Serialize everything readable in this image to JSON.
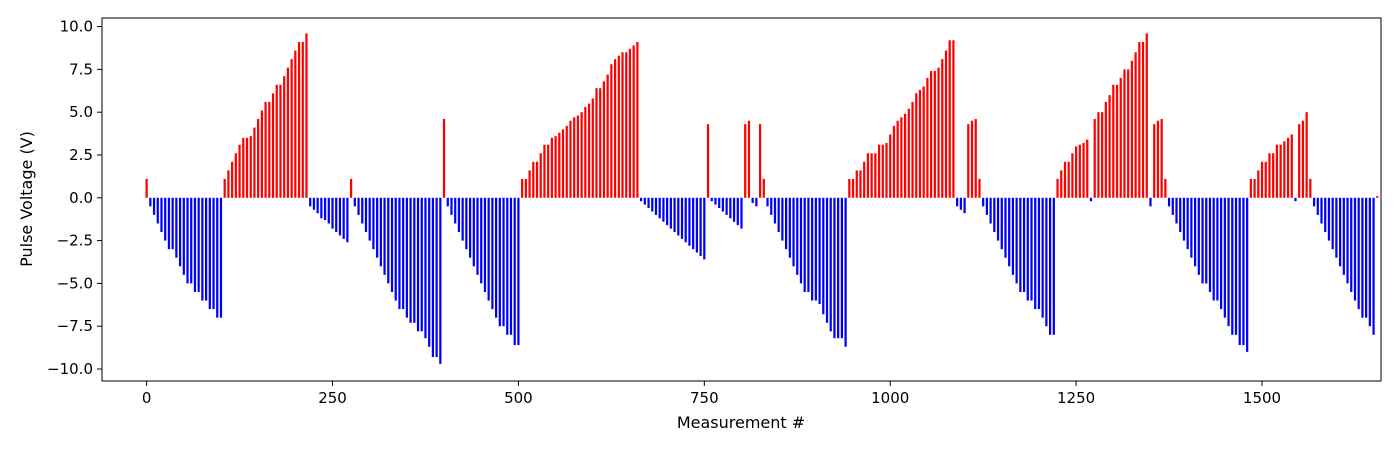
{
  "chart_data": {
    "type": "bar",
    "title": "",
    "xlabel": "Measurement #",
    "ylabel": "Pulse Voltage (V)",
    "xlim": [
      -60,
      1660
    ],
    "ylim": [
      -10.7,
      10.5
    ],
    "xticks": [
      0,
      250,
      500,
      750,
      1000,
      1250,
      1500
    ],
    "yticks": [
      -10.0,
      -7.5,
      -5.0,
      -2.5,
      0.0,
      2.5,
      5.0,
      7.5,
      10.0
    ],
    "grid": false,
    "colors": {
      "positive": "#ff0000",
      "negative": "#0000ff"
    },
    "sample_spacing": 5,
    "points": [
      [
        0,
        1.1
      ],
      [
        5,
        -0.5
      ],
      [
        10,
        -1.0
      ],
      [
        15,
        -1.5
      ],
      [
        20,
        -2.0
      ],
      [
        25,
        -2.5
      ],
      [
        30,
        -3.0
      ],
      [
        35,
        -3.0
      ],
      [
        40,
        -3.5
      ],
      [
        45,
        -4.0
      ],
      [
        50,
        -4.5
      ],
      [
        55,
        -5.0
      ],
      [
        60,
        -5.0
      ],
      [
        65,
        -5.5
      ],
      [
        70,
        -5.5
      ],
      [
        75,
        -6.0
      ],
      [
        80,
        -6.0
      ],
      [
        85,
        -6.5
      ],
      [
        90,
        -6.5
      ],
      [
        95,
        -7.0
      ],
      [
        100,
        -7.0
      ],
      [
        105,
        1.1
      ],
      [
        110,
        1.6
      ],
      [
        115,
        2.1
      ],
      [
        120,
        2.6
      ],
      [
        125,
        3.1
      ],
      [
        130,
        3.5
      ],
      [
        135,
        3.5
      ],
      [
        140,
        3.6
      ],
      [
        145,
        4.1
      ],
      [
        150,
        4.6
      ],
      [
        155,
        5.1
      ],
      [
        160,
        5.6
      ],
      [
        165,
        5.6
      ],
      [
        170,
        6.1
      ],
      [
        175,
        6.6
      ],
      [
        180,
        6.6
      ],
      [
        185,
        7.1
      ],
      [
        190,
        7.6
      ],
      [
        195,
        8.1
      ],
      [
        200,
        8.6
      ],
      [
        205,
        9.1
      ],
      [
        210,
        9.1
      ],
      [
        215,
        9.6
      ],
      [
        220,
        -0.5
      ],
      [
        225,
        -0.7
      ],
      [
        230,
        -0.9
      ],
      [
        235,
        -1.2
      ],
      [
        240,
        -1.3
      ],
      [
        245,
        -1.5
      ],
      [
        250,
        -1.8
      ],
      [
        255,
        -2.0
      ],
      [
        260,
        -2.2
      ],
      [
        265,
        -2.4
      ],
      [
        270,
        -2.6
      ],
      [
        275,
        1.1
      ],
      [
        280,
        -0.5
      ],
      [
        285,
        -1.0
      ],
      [
        290,
        -1.5
      ],
      [
        295,
        -2.0
      ],
      [
        300,
        -2.5
      ],
      [
        305,
        -3.0
      ],
      [
        310,
        -3.5
      ],
      [
        315,
        -4.0
      ],
      [
        320,
        -4.5
      ],
      [
        325,
        -5.0
      ],
      [
        330,
        -5.5
      ],
      [
        335,
        -6.0
      ],
      [
        340,
        -6.5
      ],
      [
        345,
        -6.5
      ],
      [
        350,
        -7.0
      ],
      [
        355,
        -7.3
      ],
      [
        360,
        -7.3
      ],
      [
        365,
        -7.8
      ],
      [
        370,
        -7.8
      ],
      [
        375,
        -8.2
      ],
      [
        380,
        -8.7
      ],
      [
        385,
        -9.3
      ],
      [
        390,
        -9.3
      ],
      [
        395,
        -9.7
      ],
      [
        400,
        4.6
      ],
      [
        405,
        -0.5
      ],
      [
        410,
        -1.0
      ],
      [
        415,
        -1.5
      ],
      [
        420,
        -2.0
      ],
      [
        425,
        -2.5
      ],
      [
        430,
        -3.0
      ],
      [
        435,
        -3.5
      ],
      [
        440,
        -4.0
      ],
      [
        445,
        -4.5
      ],
      [
        450,
        -5.0
      ],
      [
        455,
        -5.5
      ],
      [
        460,
        -6.0
      ],
      [
        465,
        -6.5
      ],
      [
        470,
        -7.0
      ],
      [
        475,
        -7.5
      ],
      [
        480,
        -7.5
      ],
      [
        485,
        -8.0
      ],
      [
        490,
        -8.0
      ],
      [
        495,
        -8.6
      ],
      [
        500,
        -8.6
      ],
      [
        505,
        1.1
      ],
      [
        510,
        1.1
      ],
      [
        515,
        1.6
      ],
      [
        520,
        2.1
      ],
      [
        525,
        2.1
      ],
      [
        530,
        2.6
      ],
      [
        535,
        3.1
      ],
      [
        540,
        3.1
      ],
      [
        545,
        3.5
      ],
      [
        550,
        3.6
      ],
      [
        555,
        3.8
      ],
      [
        560,
        4.0
      ],
      [
        565,
        4.2
      ],
      [
        570,
        4.5
      ],
      [
        575,
        4.7
      ],
      [
        580,
        4.8
      ],
      [
        585,
        5.0
      ],
      [
        590,
        5.3
      ],
      [
        595,
        5.5
      ],
      [
        600,
        5.8
      ],
      [
        605,
        6.4
      ],
      [
        610,
        6.4
      ],
      [
        615,
        6.8
      ],
      [
        620,
        7.2
      ],
      [
        625,
        7.8
      ],
      [
        630,
        8.1
      ],
      [
        635,
        8.3
      ],
      [
        640,
        8.5
      ],
      [
        645,
        8.5
      ],
      [
        650,
        8.7
      ],
      [
        655,
        8.9
      ],
      [
        660,
        9.1
      ],
      [
        665,
        -0.2
      ],
      [
        670,
        -0.4
      ],
      [
        675,
        -0.6
      ],
      [
        680,
        -0.8
      ],
      [
        685,
        -1.0
      ],
      [
        690,
        -1.2
      ],
      [
        695,
        -1.4
      ],
      [
        700,
        -1.6
      ],
      [
        705,
        -1.8
      ],
      [
        710,
        -2.0
      ],
      [
        715,
        -2.2
      ],
      [
        720,
        -2.4
      ],
      [
        725,
        -2.6
      ],
      [
        730,
        -2.8
      ],
      [
        735,
        -3.0
      ],
      [
        740,
        -3.2
      ],
      [
        745,
        -3.4
      ],
      [
        750,
        -3.6
      ],
      [
        755,
        4.3
      ],
      [
        760,
        -0.2
      ],
      [
        765,
        -0.4
      ],
      [
        770,
        -0.6
      ],
      [
        775,
        -0.8
      ],
      [
        780,
        -1.0
      ],
      [
        785,
        -1.2
      ],
      [
        790,
        -1.4
      ],
      [
        795,
        -1.6
      ],
      [
        800,
        -1.8
      ],
      [
        805,
        4.3
      ],
      [
        810,
        4.5
      ],
      [
        815,
        -0.3
      ],
      [
        820,
        -0.5
      ],
      [
        825,
        4.3
      ],
      [
        830,
        1.1
      ],
      [
        835,
        -0.5
      ],
      [
        840,
        -1.0
      ],
      [
        845,
        -1.5
      ],
      [
        850,
        -2.0
      ],
      [
        855,
        -2.5
      ],
      [
        860,
        -3.0
      ],
      [
        865,
        -3.5
      ],
      [
        870,
        -4.0
      ],
      [
        875,
        -4.5
      ],
      [
        880,
        -5.0
      ],
      [
        885,
        -5.5
      ],
      [
        890,
        -5.5
      ],
      [
        895,
        -6.0
      ],
      [
        900,
        -6.0
      ],
      [
        905,
        -6.2
      ],
      [
        910,
        -6.8
      ],
      [
        915,
        -7.3
      ],
      [
        920,
        -7.8
      ],
      [
        925,
        -8.2
      ],
      [
        930,
        -8.2
      ],
      [
        935,
        -8.2
      ],
      [
        940,
        -8.7
      ],
      [
        945,
        1.1
      ],
      [
        950,
        1.1
      ],
      [
        955,
        1.6
      ],
      [
        960,
        1.6
      ],
      [
        965,
        2.1
      ],
      [
        970,
        2.6
      ],
      [
        975,
        2.6
      ],
      [
        980,
        2.6
      ],
      [
        985,
        3.1
      ],
      [
        990,
        3.1
      ],
      [
        995,
        3.2
      ],
      [
        1000,
        3.7
      ],
      [
        1005,
        4.2
      ],
      [
        1010,
        4.5
      ],
      [
        1015,
        4.7
      ],
      [
        1020,
        4.9
      ],
      [
        1025,
        5.2
      ],
      [
        1030,
        5.6
      ],
      [
        1035,
        6.1
      ],
      [
        1040,
        6.3
      ],
      [
        1045,
        6.5
      ],
      [
        1050,
        7.0
      ],
      [
        1055,
        7.4
      ],
      [
        1060,
        7.4
      ],
      [
        1065,
        7.6
      ],
      [
        1070,
        8.1
      ],
      [
        1075,
        8.6
      ],
      [
        1080,
        9.2
      ],
      [
        1085,
        9.2
      ],
      [
        1090,
        -0.5
      ],
      [
        1095,
        -0.7
      ],
      [
        1100,
        -0.9
      ],
      [
        1105,
        4.3
      ],
      [
        1110,
        4.5
      ],
      [
        1115,
        4.6
      ],
      [
        1120,
        1.1
      ],
      [
        1125,
        -0.5
      ],
      [
        1130,
        -1.0
      ],
      [
        1135,
        -1.5
      ],
      [
        1140,
        -2.0
      ],
      [
        1145,
        -2.5
      ],
      [
        1150,
        -3.0
      ],
      [
        1155,
        -3.5
      ],
      [
        1160,
        -4.0
      ],
      [
        1165,
        -4.5
      ],
      [
        1170,
        -5.0
      ],
      [
        1175,
        -5.5
      ],
      [
        1180,
        -5.5
      ],
      [
        1185,
        -6.0
      ],
      [
        1190,
        -6.0
      ],
      [
        1195,
        -6.5
      ],
      [
        1200,
        -6.5
      ],
      [
        1205,
        -7.0
      ],
      [
        1210,
        -7.5
      ],
      [
        1215,
        -8.0
      ],
      [
        1220,
        -8.0
      ],
      [
        1225,
        1.1
      ],
      [
        1230,
        1.6
      ],
      [
        1235,
        2.1
      ],
      [
        1240,
        2.1
      ],
      [
        1245,
        2.6
      ],
      [
        1250,
        3.0
      ],
      [
        1255,
        3.1
      ],
      [
        1260,
        3.2
      ],
      [
        1265,
        3.4
      ],
      [
        1270,
        -0.2
      ],
      [
        1275,
        4.6
      ],
      [
        1280,
        5.0
      ],
      [
        1285,
        5.0
      ],
      [
        1290,
        5.6
      ],
      [
        1295,
        6.0
      ],
      [
        1300,
        6.6
      ],
      [
        1305,
        6.6
      ],
      [
        1310,
        7.0
      ],
      [
        1315,
        7.5
      ],
      [
        1320,
        7.5
      ],
      [
        1325,
        8.0
      ],
      [
        1330,
        8.5
      ],
      [
        1335,
        9.1
      ],
      [
        1340,
        9.1
      ],
      [
        1345,
        9.6
      ],
      [
        1350,
        -0.5
      ],
      [
        1355,
        4.3
      ],
      [
        1360,
        4.5
      ],
      [
        1365,
        4.6
      ],
      [
        1370,
        1.1
      ],
      [
        1375,
        -0.5
      ],
      [
        1380,
        -1.0
      ],
      [
        1385,
        -1.5
      ],
      [
        1390,
        -2.0
      ],
      [
        1395,
        -2.5
      ],
      [
        1400,
        -3.0
      ],
      [
        1405,
        -3.5
      ],
      [
        1410,
        -4.0
      ],
      [
        1415,
        -4.5
      ],
      [
        1420,
        -5.0
      ],
      [
        1425,
        -5.0
      ],
      [
        1430,
        -5.5
      ],
      [
        1435,
        -6.0
      ],
      [
        1440,
        -6.0
      ],
      [
        1445,
        -6.5
      ],
      [
        1450,
        -7.0
      ],
      [
        1455,
        -7.5
      ],
      [
        1460,
        -8.0
      ],
      [
        1465,
        -8.0
      ],
      [
        1470,
        -8.6
      ],
      [
        1475,
        -8.6
      ],
      [
        1480,
        -9.0
      ],
      [
        1485,
        1.1
      ],
      [
        1490,
        1.1
      ],
      [
        1495,
        1.6
      ],
      [
        1500,
        2.1
      ],
      [
        1505,
        2.1
      ],
      [
        1510,
        2.6
      ],
      [
        1515,
        2.6
      ],
      [
        1520,
        3.1
      ],
      [
        1525,
        3.1
      ],
      [
        1530,
        3.3
      ],
      [
        1535,
        3.5
      ],
      [
        1540,
        3.7
      ],
      [
        1545,
        -0.2
      ],
      [
        1550,
        4.3
      ],
      [
        1555,
        4.5
      ],
      [
        1560,
        5.0
      ],
      [
        1565,
        1.1
      ],
      [
        1570,
        -0.5
      ],
      [
        1575,
        -1.0
      ],
      [
        1580,
        -1.5
      ],
      [
        1585,
        -2.0
      ],
      [
        1590,
        -2.5
      ],
      [
        1595,
        -3.0
      ],
      [
        1600,
        -3.5
      ],
      [
        1605,
        -4.0
      ],
      [
        1610,
        -4.5
      ],
      [
        1615,
        -5.0
      ],
      [
        1620,
        -5.5
      ],
      [
        1625,
        -6.0
      ],
      [
        1630,
        -6.5
      ],
      [
        1635,
        -7.0
      ],
      [
        1640,
        -7.0
      ],
      [
        1645,
        -7.5
      ],
      [
        1650,
        -8.0
      ],
      [
        1655,
        0.1
      ]
    ]
  }
}
